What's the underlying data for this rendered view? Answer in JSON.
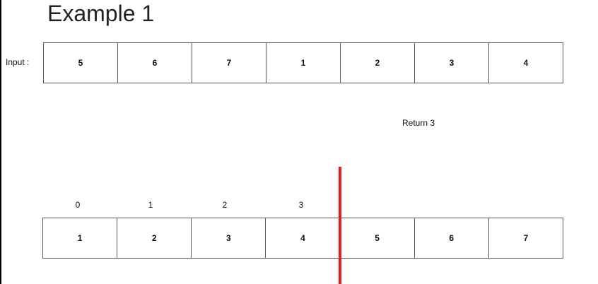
{
  "title": "Example 1",
  "input": {
    "label": "Input :",
    "values": [
      "5",
      "6",
      "7",
      "1",
      "2",
      "3",
      "4"
    ]
  },
  "result": "Return 3",
  "indices": [
    "0",
    "1",
    "2",
    "3"
  ],
  "sorted": {
    "values": [
      "1",
      "2",
      "3",
      "4",
      "5",
      "6",
      "7"
    ]
  },
  "colors": {
    "divider": "#e31b1b"
  }
}
